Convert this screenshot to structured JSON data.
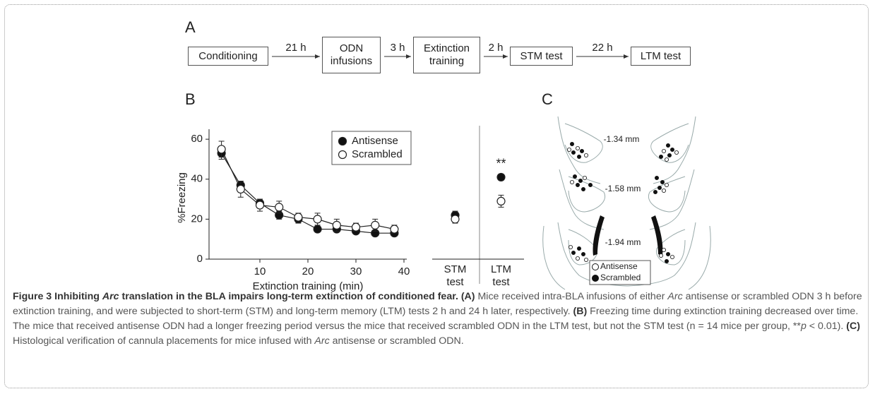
{
  "flow": {
    "panel_label": "A",
    "steps": [
      "Conditioning",
      "ODN infusions",
      "Extinction training",
      "STM test",
      "LTM test"
    ],
    "intervals": [
      "21 h",
      "3 h",
      "2 h",
      "22 h"
    ]
  },
  "chart_data": [
    {
      "type": "line",
      "panel_label": "B",
      "x_label": "Extinction training (min)",
      "y_label": "%Freezing",
      "x": [
        2,
        6,
        10,
        14,
        18,
        22,
        26,
        30,
        34,
        38
      ],
      "xlim": [
        0,
        40
      ],
      "xticks": [
        10,
        20,
        30,
        40
      ],
      "ylim": [
        0,
        65
      ],
      "yticks": [
        0,
        20,
        40,
        60
      ],
      "legend": "upper right",
      "series": [
        {
          "name": "Antisense",
          "color": "#111111",
          "values": [
            53,
            37,
            28,
            22,
            20,
            15,
            15,
            14,
            13,
            13
          ],
          "errors": [
            3,
            2,
            2,
            2,
            2,
            1,
            1,
            1,
            1,
            1
          ]
        },
        {
          "name": "Scrambled",
          "color": "#ffffff",
          "values": [
            55,
            35,
            27,
            26,
            21,
            20,
            17,
            16,
            17,
            15
          ],
          "errors": [
            4,
            4,
            3,
            3,
            2,
            3,
            3,
            2,
            3,
            2
          ]
        }
      ]
    },
    {
      "type": "dot",
      "categories": [
        "STM test",
        "LTM test"
      ],
      "ylim": [
        0,
        65
      ],
      "series": [
        {
          "name": "Antisense",
          "color": "#111111",
          "values": [
            22,
            41
          ],
          "errors": [
            2,
            1.5
          ]
        },
        {
          "name": "Scrambled",
          "color": "#ffffff",
          "values": [
            20,
            29
          ],
          "errors": [
            2,
            3
          ]
        }
      ],
      "annotations": [
        {
          "text": "**",
          "category": "LTM test"
        }
      ]
    }
  ],
  "histology": {
    "panel_label": "C",
    "levels": [
      "-1.34 mm",
      "-1.58 mm",
      "-1.94 mm"
    ],
    "legend": [
      {
        "name": "Antisense",
        "marker": "open"
      },
      {
        "name": "Scrambled",
        "marker": "filled"
      }
    ]
  },
  "caption": {
    "runs": [
      {
        "text": "Figure 3 Inhibiting ",
        "style": "bold"
      },
      {
        "text": "Arc",
        "style": "bold-italic"
      },
      {
        "text": " translation in the BLA impairs long-term extinction of conditioned fear.",
        "style": "bold"
      },
      {
        "text": " (A)",
        "style": "bold"
      },
      {
        "text": " Mice received intra-BLA infusions of either ",
        "style": "normal"
      },
      {
        "text": "Arc",
        "style": "italic"
      },
      {
        "text": " antisense or scrambled ODN 3 h before extinction training, and were subjected to short-term (STM) and long-term memory (LTM) tests 2 h and 24 h later, respectively. ",
        "style": "normal"
      },
      {
        "text": "(B)",
        "style": "bold"
      },
      {
        "text": " Freezing time during extinction training decreased over time. The mice that received antisense ODN had a longer freezing period versus the mice that received scrambled ODN in the LTM test, but not the STM test (n = 14 mice per group, **",
        "style": "normal"
      },
      {
        "text": "p",
        "style": "italic"
      },
      {
        "text": " < 0.01). ",
        "style": "normal"
      },
      {
        "text": "(C)",
        "style": "bold"
      },
      {
        "text": " Histological verification of cannula placements for mice infused with ",
        "style": "normal"
      },
      {
        "text": "Arc",
        "style": "italic"
      },
      {
        "text": " antisense or scrambled ODN.",
        "style": "normal"
      }
    ]
  }
}
